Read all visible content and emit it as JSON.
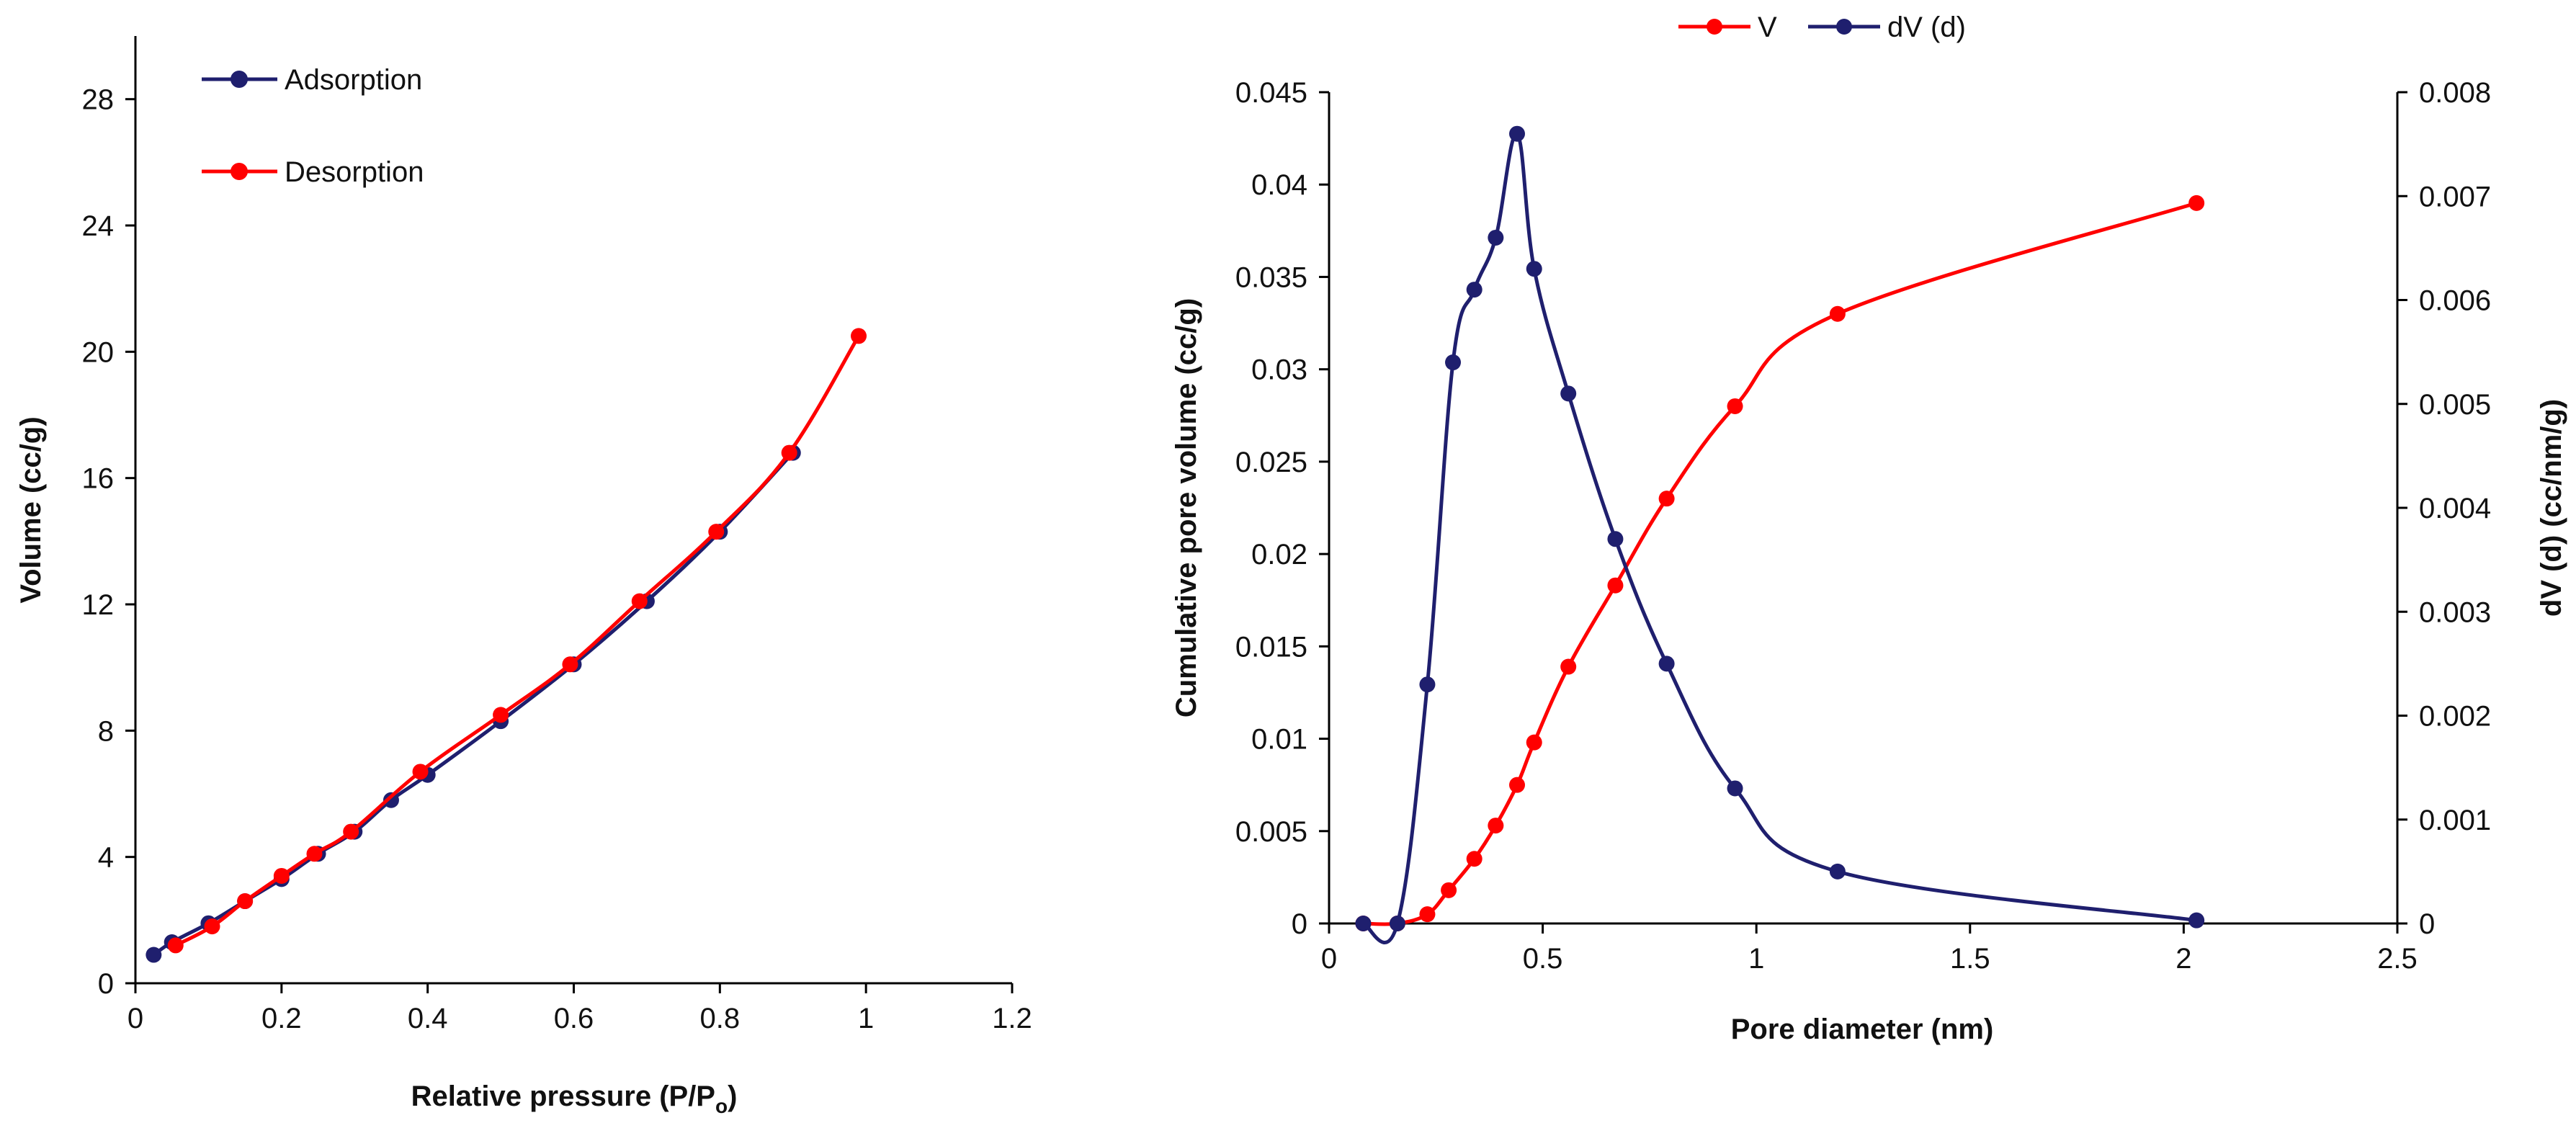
{
  "chart_data": [
    {
      "type": "line",
      "title": "",
      "xlabel": "Relative pressure (P/P",
      "xlabel_subscript": "o",
      "xlabel_suffix": ")",
      "ylabel": "Volume (cc/g)",
      "xlim": [
        0,
        1.2
      ],
      "ylim": [
        0,
        30
      ],
      "xticks": [
        "0",
        "0.2",
        "0.4",
        "0.6",
        "0.8",
        "1",
        "1.2"
      ],
      "yticks": [
        "0",
        "4",
        "8",
        "12",
        "16",
        "20",
        "24",
        "28"
      ],
      "legend": {
        "placement": "top-left"
      },
      "series": [
        {
          "name": "Adsorption",
          "color": "#1f1f6e",
          "x": [
            0.025,
            0.05,
            0.1,
            0.15,
            0.2,
            0.25,
            0.3,
            0.35,
            0.4,
            0.5,
            0.6,
            0.7,
            0.8,
            0.9
          ],
          "y": [
            0.9,
            1.3,
            1.9,
            2.6,
            3.3,
            4.1,
            4.8,
            5.8,
            6.6,
            8.3,
            10.1,
            12.1,
            14.3,
            16.8
          ]
        },
        {
          "name": "Desorption",
          "color": "#ff0000",
          "x": [
            0.055,
            0.105,
            0.15,
            0.2,
            0.245,
            0.295,
            0.39,
            0.5,
            0.595,
            0.69,
            0.795,
            0.895,
            0.99
          ],
          "y": [
            1.2,
            1.8,
            2.6,
            3.4,
            4.1,
            4.8,
            6.7,
            8.5,
            10.1,
            12.1,
            14.3,
            16.8,
            20.5
          ]
        }
      ]
    },
    {
      "type": "line",
      "title": "",
      "xlabel": "Pore diameter (nm)",
      "ylabel": "Cumulative pore volume (cc/g)",
      "y2label": "dV (d) (cc/nm/g)",
      "xlim": [
        0,
        2.5
      ],
      "ylim": [
        0,
        0.045
      ],
      "y2lim": [
        0,
        0.008
      ],
      "xticks": [
        "0",
        "0.5",
        "1",
        "1.5",
        "2",
        "2.5"
      ],
      "yticks": [
        "0",
        "0.005",
        "0.01",
        "0.015",
        "0.02",
        "0.025",
        "0.03",
        "0.035",
        "0.04",
        "0.045"
      ],
      "y2ticks": [
        "0",
        "0.001",
        "0.002",
        "0.003",
        "0.004",
        "0.005",
        "0.006",
        "0.007",
        "0.008"
      ],
      "legend": {
        "placement": "top-center"
      },
      "series": [
        {
          "name": "V",
          "axis": "left",
          "color": "#ff0000",
          "x": [
            0.08,
            0.16,
            0.23,
            0.28,
            0.34,
            0.39,
            0.44,
            0.48,
            0.56,
            0.67,
            0.79,
            0.95,
            1.19,
            2.03
          ],
          "y": [
            0.0,
            0.0,
            0.0005,
            0.0018,
            0.0035,
            0.0053,
            0.0075,
            0.0098,
            0.0139,
            0.0183,
            0.023,
            0.028,
            0.033,
            0.039
          ]
        },
        {
          "name": "dV (d)",
          "axis": "right",
          "color": "#1f1f6e",
          "x": [
            0.08,
            0.16,
            0.23,
            0.29,
            0.34,
            0.39,
            0.44,
            0.48,
            0.56,
            0.67,
            0.79,
            0.95,
            1.19,
            2.03
          ],
          "y": [
            0.0,
            0.0,
            0.0023,
            0.0054,
            0.0061,
            0.0066,
            0.0076,
            0.0063,
            0.0051,
            0.0037,
            0.0025,
            0.0013,
            0.0005,
            3e-05
          ]
        }
      ]
    }
  ]
}
